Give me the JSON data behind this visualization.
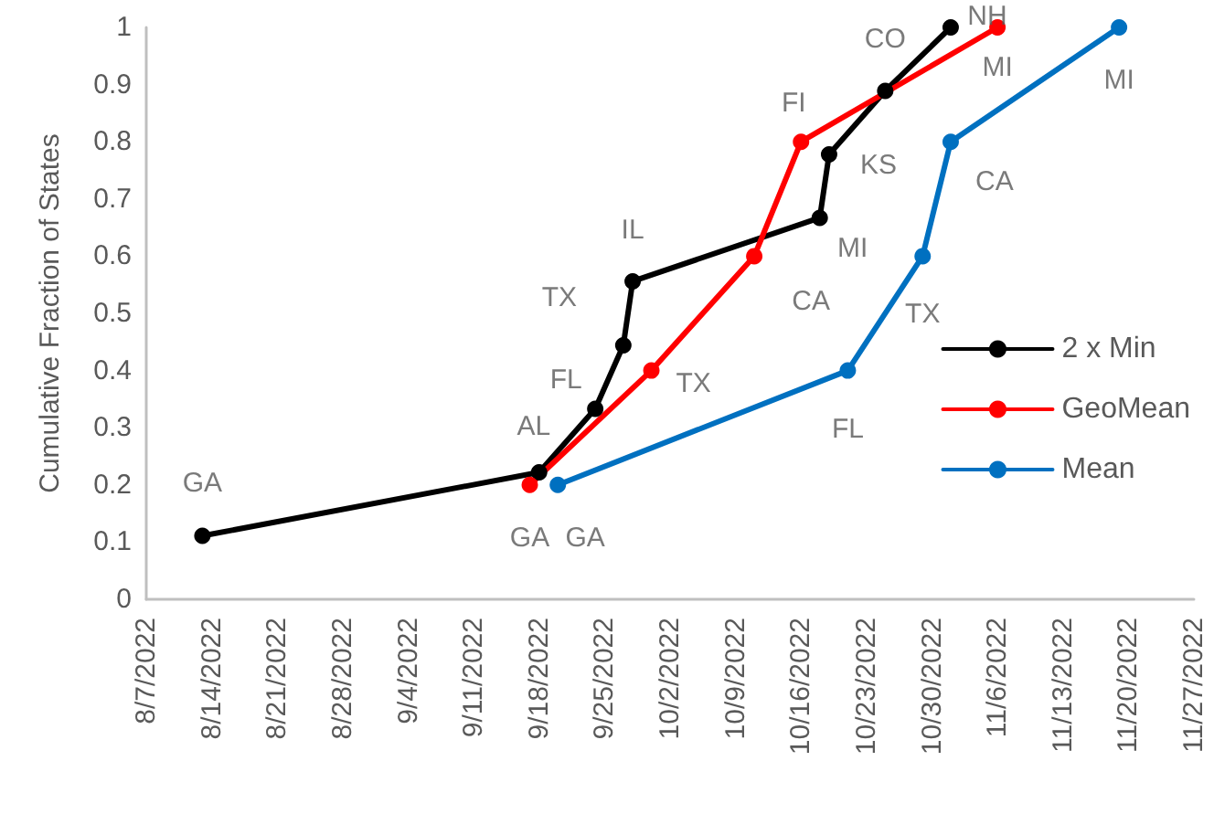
{
  "chart_data": {
    "type": "line",
    "ylabel": "Cumulative Fraction of States",
    "xlim": [
      "2022-08-07",
      "2022-11-27"
    ],
    "xticks": [
      {
        "value": "2022-08-07",
        "label": "8/7/2022"
      },
      {
        "value": "2022-08-14",
        "label": "8/14/2022"
      },
      {
        "value": "2022-08-21",
        "label": "8/21/2022"
      },
      {
        "value": "2022-08-28",
        "label": "8/28/2022"
      },
      {
        "value": "2022-09-04",
        "label": "9/4/2022"
      },
      {
        "value": "2022-09-11",
        "label": "9/11/2022"
      },
      {
        "value": "2022-09-18",
        "label": "9/18/2022"
      },
      {
        "value": "2022-09-25",
        "label": "9/25/2022"
      },
      {
        "value": "2022-10-02",
        "label": "10/2/2022"
      },
      {
        "value": "2022-10-09",
        "label": "10/9/2022"
      },
      {
        "value": "2022-10-16",
        "label": "10/16/2022"
      },
      {
        "value": "2022-10-23",
        "label": "10/23/2022"
      },
      {
        "value": "2022-10-30",
        "label": "10/30/2022"
      },
      {
        "value": "2022-11-06",
        "label": "11/6/2022"
      },
      {
        "value": "2022-11-13",
        "label": "11/13/2022"
      },
      {
        "value": "2022-11-20",
        "label": "11/20/2022"
      },
      {
        "value": "2022-11-27",
        "label": "11/27/2022"
      }
    ],
    "ylim": [
      0,
      1
    ],
    "yticks": [
      0,
      0.1,
      0.2,
      0.3,
      0.4,
      0.5,
      0.6,
      0.7,
      0.8,
      0.9,
      1
    ],
    "grid": false,
    "legend": "right",
    "marker": "circle",
    "line_style": "solid",
    "series": [
      {
        "name": "2 x Min",
        "color": "#000000",
        "x": [
          "2022-08-13",
          "2022-09-18",
          "2022-09-24",
          "2022-09-27",
          "2022-09-28",
          "2022-10-18",
          "2022-10-19",
          "2022-10-25",
          "2022-11-01"
        ],
        "values": [
          0.111,
          0.222,
          0.333,
          0.444,
          0.556,
          0.667,
          0.778,
          0.889,
          1
        ]
      },
      {
        "name": "GeoMean",
        "color": "#ff0000",
        "x": [
          "2022-09-17",
          "2022-09-30",
          "2022-10-11",
          "2022-10-16",
          "2022-11-06"
        ],
        "values": [
          0.2,
          0.4,
          0.6,
          0.8,
          1
        ]
      },
      {
        "name": "Mean",
        "color": "#0070c0",
        "x": [
          "2022-09-20",
          "2022-10-21",
          "2022-10-29",
          "2022-11-01",
          "2022-11-19"
        ],
        "values": [
          0.2,
          0.4,
          0.6,
          0.8,
          1
        ]
      }
    ],
    "annotations": [
      {
        "text": "GA",
        "x": "2022-08-13",
        "y": 0.111
      },
      {
        "text": "AL",
        "x": "2022-09-18",
        "y": 0.222
      },
      {
        "text": "FL",
        "x": "2022-09-24",
        "y": 0.333
      },
      {
        "text": "TX",
        "x": "2022-09-27",
        "y": 0.444
      },
      {
        "text": "IL",
        "x": "2022-09-28",
        "y": 0.556
      },
      {
        "text": "MI",
        "x": "2022-10-18",
        "y": 0.667
      },
      {
        "text": "KS",
        "x": "2022-10-19",
        "y": 0.778
      },
      {
        "text": "CO",
        "x": "2022-10-25",
        "y": 0.889
      },
      {
        "text": "NH",
        "x": "2022-11-01",
        "y": 1
      },
      {
        "text": "GA",
        "x": "2022-09-17",
        "y": 0.2
      },
      {
        "text": "TX",
        "x": "2022-09-30",
        "y": 0.4
      },
      {
        "text": "CA",
        "x": "2022-10-11",
        "y": 0.6
      },
      {
        "text": "FI",
        "x": "2022-10-16",
        "y": 0.8
      },
      {
        "text": "MI",
        "x": "2022-11-06",
        "y": 1
      },
      {
        "text": "GA",
        "x": "2022-09-20",
        "y": 0.2
      },
      {
        "text": "FL",
        "x": "2022-10-21",
        "y": 0.4
      },
      {
        "text": "TX",
        "x": "2022-10-29",
        "y": 0.6
      },
      {
        "text": "CA",
        "x": "2022-11-01",
        "y": 0.8
      },
      {
        "text": "MI",
        "x": "2022-11-19",
        "y": 1
      }
    ]
  }
}
